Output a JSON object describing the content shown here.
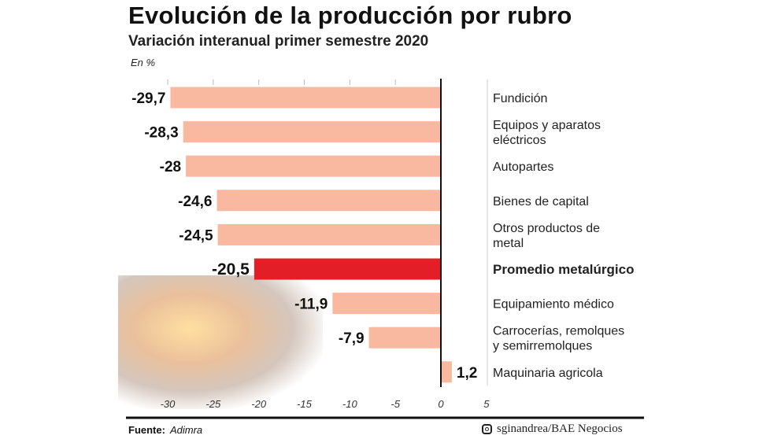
{
  "chart_data": {
    "type": "bar",
    "orientation": "horizontal",
    "title": "Evolución de la producción por rubro",
    "subtitle": "Variación interanual primer semestre 2020",
    "unit_label": "En %",
    "categories": [
      "Fundición",
      "Equipos y aparatos eléctricos",
      "Autopartes",
      "Bienes de capital",
      "Otros productos de metal",
      "Promedio metalúrgico",
      "Equipamiento médico",
      "Carrocerías, remolques y semirremolques",
      "Maquinaria agricola"
    ],
    "category_lines": [
      [
        "Fundición"
      ],
      [
        "Equipos y aparatos",
        "eléctricos"
      ],
      [
        "Autopartes"
      ],
      [
        "Bienes de capital"
      ],
      [
        "Otros productos de",
        "metal"
      ],
      [
        "Promedio metalúrgico"
      ],
      [
        "Equipamiento médico"
      ],
      [
        "Carrocerías, remolques",
        "y semirremolques"
      ],
      [
        "Maquinaria agricola"
      ]
    ],
    "values": [
      -29.7,
      -28.3,
      -28,
      -24.6,
      -24.5,
      -20.5,
      -11.9,
      -7.9,
      1.2
    ],
    "value_labels": [
      "-29,7",
      "-28,3",
      "-28",
      "-24,6",
      "-24,5",
      "-20,5",
      "-11,9",
      "-7,9",
      "1,2"
    ],
    "highlight_index": 5,
    "xlim": [
      -30,
      5
    ],
    "xticks": [
      -30,
      -25,
      -20,
      -15,
      -10,
      -5,
      0,
      5
    ],
    "xtick_labels": [
      "-30",
      "-25",
      "-20",
      "-15",
      "-10",
      "-5",
      "0",
      "5"
    ],
    "grid": false,
    "colors": {
      "bar": "#f8b9a0",
      "highlight": "#e41e26"
    }
  },
  "footer": {
    "source_label": "Fuente:",
    "source": "Adimra",
    "credit": "sginandrea/BAE Negocios",
    "credit_icon": "instagram-icon"
  }
}
